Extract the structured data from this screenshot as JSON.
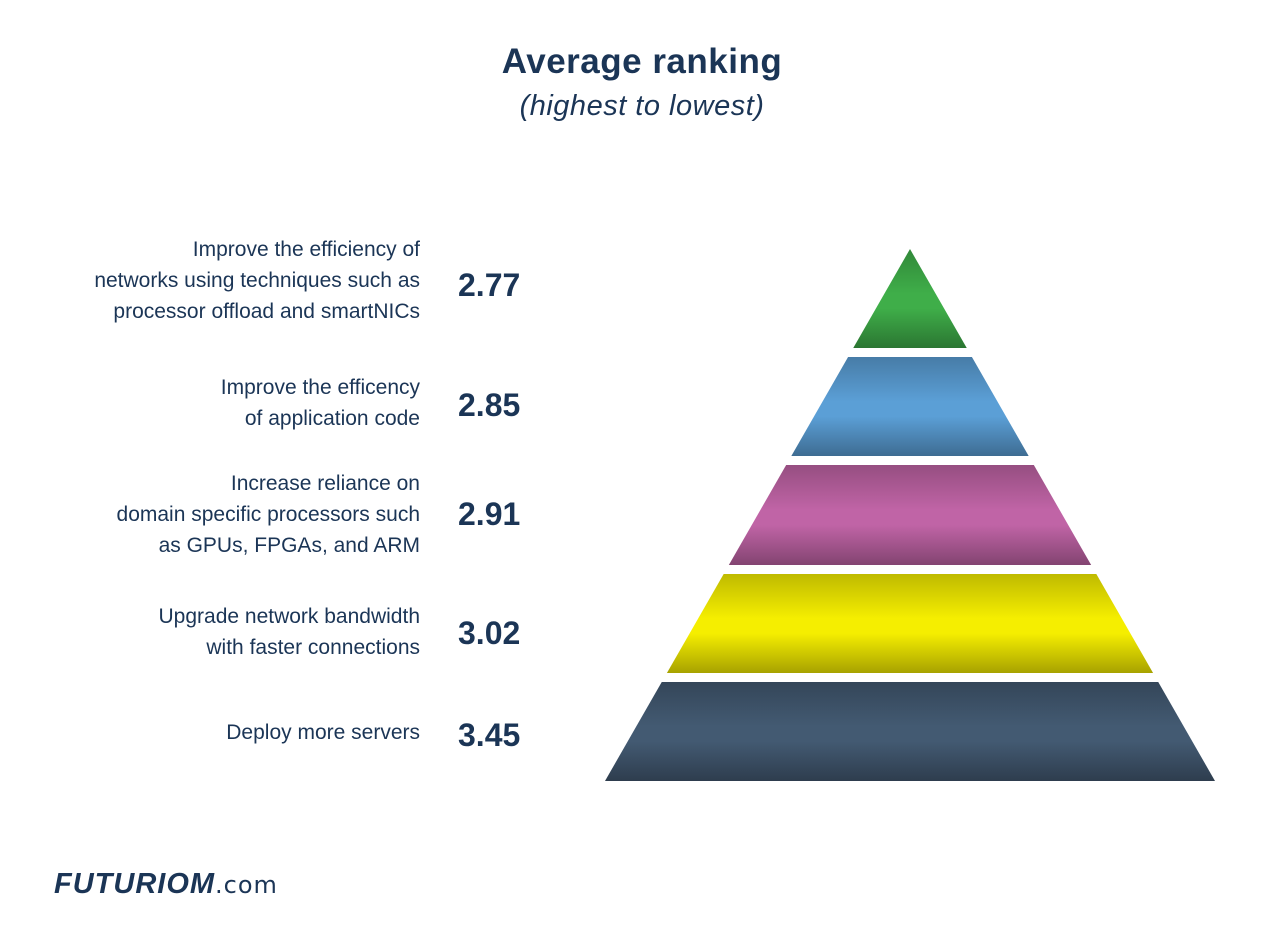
{
  "chart_data": {
    "type": "pyramid",
    "title": "Average ranking",
    "subtitle": "(highest to lowest)",
    "levels": [
      {
        "label_lines": [
          "Improve the efficiency of",
          "networks using techniques such as",
          "processor offload and smartNICs"
        ],
        "value": "2.77",
        "color": "#3fae49"
      },
      {
        "label_lines": [
          "Improve the efficency",
          "of application code"
        ],
        "value": "2.85",
        "color": "#5b9fd6"
      },
      {
        "label_lines": [
          "Increase reliance on",
          "domain specific processors such",
          "as GPUs, FPGAs, and ARM"
        ],
        "value": "2.91",
        "color": "#c064a6"
      },
      {
        "label_lines": [
          "Upgrade network bandwidth",
          "with faster connections"
        ],
        "value": "3.02",
        "color": "#f5ee00"
      },
      {
        "label_lines": [
          "Deploy more servers"
        ],
        "value": "3.45",
        "color": "#435a72"
      }
    ]
  },
  "footer": {
    "brand": "FUTURIOM",
    "tld": ".com"
  }
}
